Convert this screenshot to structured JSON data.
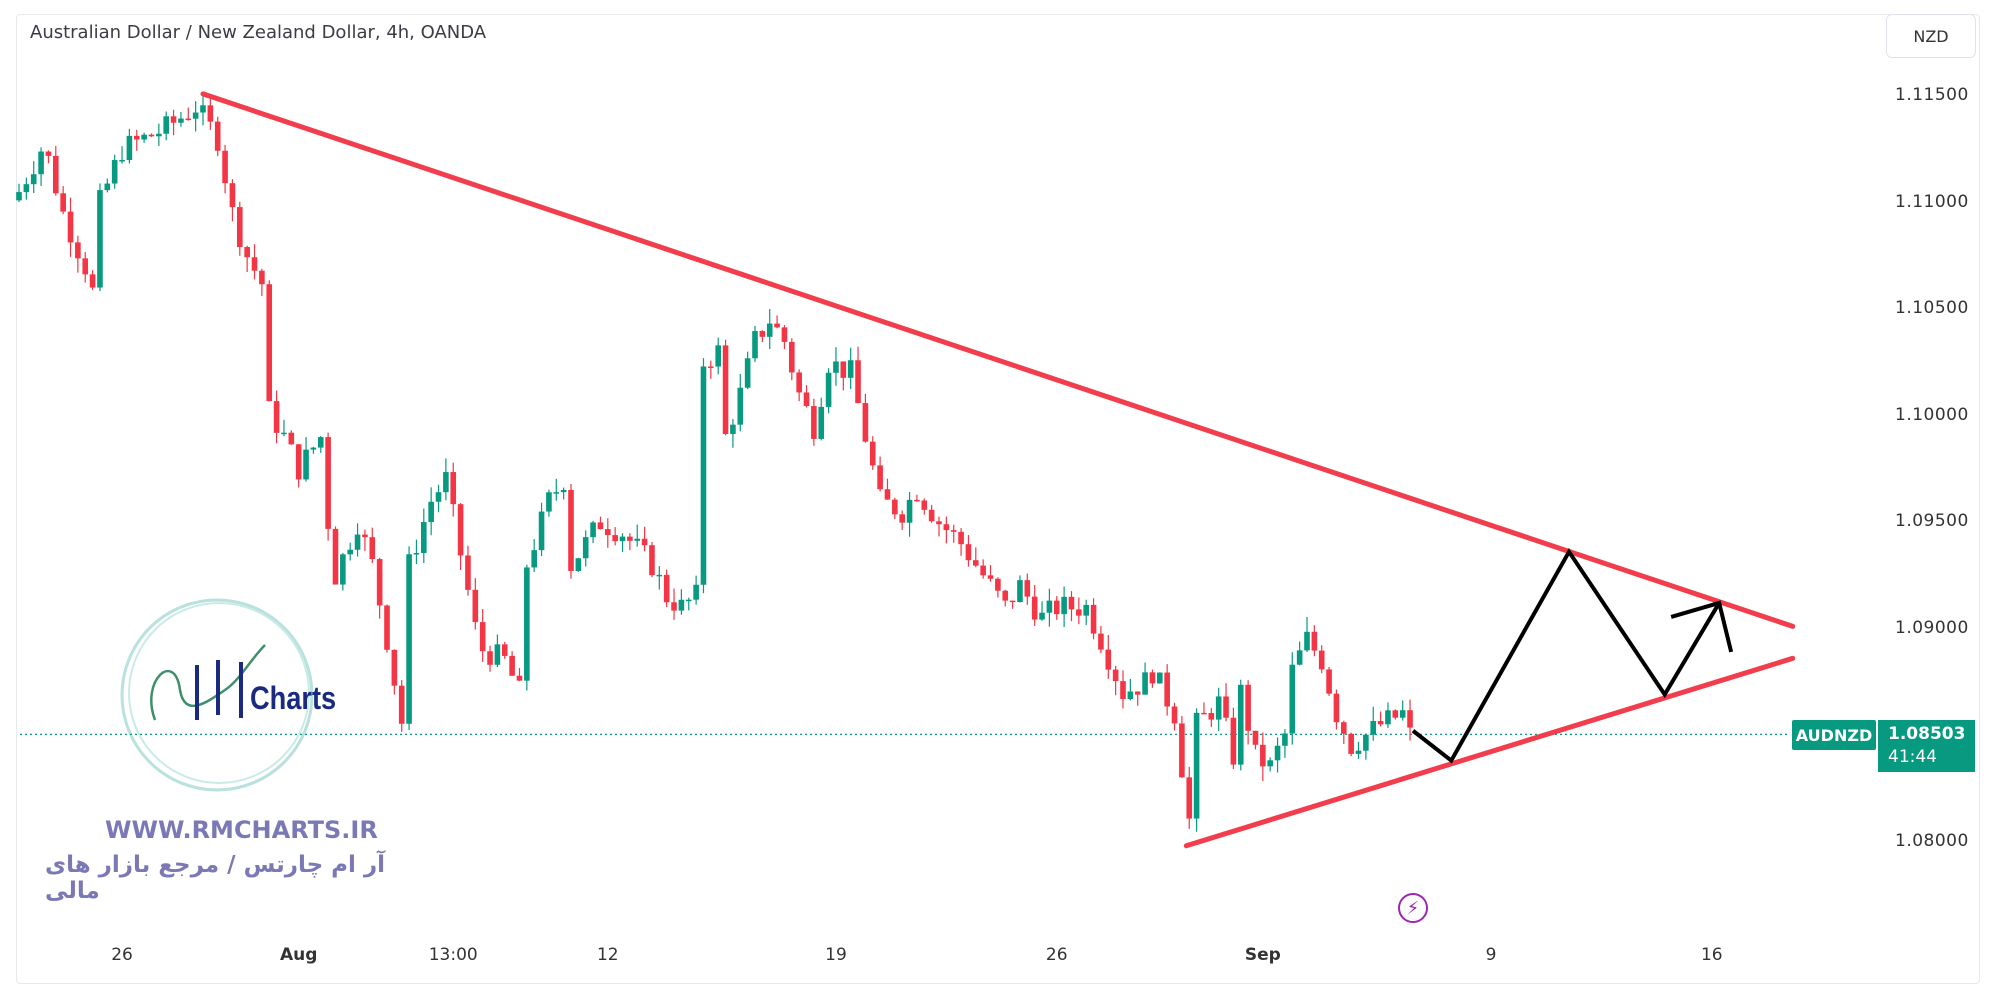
{
  "header": {
    "title": "Australian Dollar / New Zealand Dollar, 4h, OANDA",
    "currency": "NZD"
  },
  "price_label": {
    "symbol": "AUDNZD",
    "price": "1.08503",
    "countdown": "41:44"
  },
  "watermark": {
    "url": "WWW.RMCHARTS.IR",
    "tagline": "آر ام چارتس / مرجع بازار های مالی",
    "logo": "RM Charts"
  },
  "icons": {
    "lightning": "lightning-icon"
  },
  "colors": {
    "up": "#089981",
    "down": "#f23645",
    "trendline": "#f23d4c",
    "projection": "#000000",
    "last_price": "#089981"
  },
  "chart_data": {
    "type": "candlestick",
    "title": "Australian Dollar / New Zealand Dollar, 4h, OANDA",
    "candle_count": 190,
    "close_path": [
      [
        0,
        1.1105
      ],
      [
        3,
        1.1125
      ],
      [
        4,
        1.112
      ],
      [
        6,
        1.1095
      ],
      [
        9,
        1.107
      ],
      [
        10,
        1.1058
      ],
      [
        11,
        1.11
      ],
      [
        14,
        1.1125
      ],
      [
        17,
        1.113
      ],
      [
        20,
        1.1135
      ],
      [
        24,
        1.1145
      ],
      [
        27,
        1.113
      ],
      [
        29,
        1.1095
      ],
      [
        31,
        1.1075
      ],
      [
        33,
        1.1062
      ],
      [
        34,
        1.1002
      ],
      [
        36,
        1.099
      ],
      [
        38,
        1.0975
      ],
      [
        41,
        1.099
      ],
      [
        42,
        1.095
      ],
      [
        43,
        1.0925
      ],
      [
        46,
        1.095
      ],
      [
        48,
        1.093
      ],
      [
        50,
        1.0895
      ],
      [
        52,
        1.0856
      ],
      [
        53,
        1.093
      ],
      [
        56,
        1.096
      ],
      [
        58,
        1.097
      ],
      [
        62,
        1.09
      ],
      [
        63,
        1.089
      ],
      [
        66,
        1.0885
      ],
      [
        68,
        1.087
      ],
      [
        69,
        1.093
      ],
      [
        72,
        1.096
      ],
      [
        74,
        1.097
      ],
      [
        75,
        1.093
      ],
      [
        79,
        1.095
      ],
      [
        82,
        1.0945
      ],
      [
        86,
        1.093
      ],
      [
        88,
        1.0915
      ],
      [
        90,
        1.091
      ],
      [
        92,
        1.0915
      ],
      [
        93,
        1.1025
      ],
      [
        95,
        1.103
      ],
      [
        96,
        1.099
      ],
      [
        98,
        1.101
      ],
      [
        100,
        1.1035
      ],
      [
        102,
        1.1045
      ],
      [
        104,
        1.1035
      ],
      [
        106,
        1.101
      ],
      [
        108,
        1.0995
      ],
      [
        110,
        1.1025
      ],
      [
        113,
        1.102
      ],
      [
        115,
        1.099
      ],
      [
        117,
        1.096
      ],
      [
        120,
        1.0955
      ],
      [
        122,
        1.0965
      ],
      [
        125,
        1.095
      ],
      [
        128,
        1.094
      ],
      [
        131,
        1.0925
      ],
      [
        134,
        1.091
      ],
      [
        136,
        1.092
      ],
      [
        139,
        1.0905
      ],
      [
        141,
        1.091
      ],
      [
        145,
        1.091
      ],
      [
        147,
        1.0895
      ],
      [
        150,
        1.087
      ],
      [
        153,
        1.0875
      ],
      [
        154,
        1.088
      ],
      [
        157,
        1.086
      ],
      [
        159,
        1.081
      ],
      [
        160,
        1.0855
      ],
      [
        163,
        1.0865
      ],
      [
        165,
        1.084
      ],
      [
        166,
        1.087
      ],
      [
        168,
        1.084
      ],
      [
        170,
        1.0835
      ],
      [
        172,
        1.085
      ],
      [
        173,
        1.088
      ],
      [
        175,
        1.0895
      ],
      [
        177,
        1.0885
      ],
      [
        179,
        1.086
      ],
      [
        181,
        1.0845
      ],
      [
        183,
        1.085
      ],
      [
        185,
        1.0855
      ],
      [
        188,
        1.086
      ],
      [
        189,
        1.085
      ]
    ],
    "y_ticks": [
      "1.11500",
      "1.11000",
      "1.10500",
      "1.10000",
      "1.09500",
      "1.09000",
      "1.08000"
    ],
    "y_tick_values": [
      1.115,
      1.11,
      1.105,
      1.1,
      1.095,
      1.09,
      1.08
    ],
    "x_ticks": [
      {
        "label": "26",
        "index": 14
      },
      {
        "label": "Aug",
        "index": 38
      },
      {
        "label": "13:00",
        "index": 59
      },
      {
        "label": "12",
        "index": 80
      },
      {
        "label": "19",
        "index": 111
      },
      {
        "label": "26",
        "index": 141
      },
      {
        "label": "Sep",
        "index": 169
      },
      {
        "label": "9",
        "index": 200
      },
      {
        "label": "16",
        "index": 230
      }
    ],
    "last_price": 1.08503,
    "trendlines": [
      {
        "name": "upper",
        "from": [
          25,
          1.1151
        ],
        "to": [
          241,
          1.0901
        ]
      },
      {
        "name": "lower",
        "from": [
          158.6,
          1.0798
        ],
        "to": [
          241,
          1.0886
        ]
      }
    ],
    "projection": [
      [
        189.4,
        1.0852
      ],
      [
        194.6,
        1.0838
      ],
      [
        210.6,
        1.0936
      ],
      [
        223.6,
        1.0869
      ],
      [
        231,
        1.0912
      ]
    ],
    "ylim": [
      1.0765,
      1.1195
    ]
  }
}
